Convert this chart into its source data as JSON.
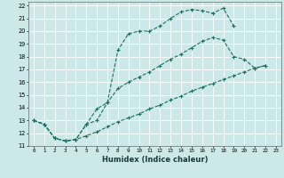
{
  "xlabel": "Humidex (Indice chaleur)",
  "background_color": "#cce8e8",
  "grid_color": "#b0d4d4",
  "line_color": "#1a7060",
  "xlim": [
    -0.5,
    23.5
  ],
  "ylim": [
    11,
    22.3
  ],
  "xticks": [
    0,
    1,
    2,
    3,
    4,
    5,
    6,
    7,
    8,
    9,
    10,
    11,
    12,
    13,
    14,
    15,
    16,
    17,
    18,
    19,
    20,
    21,
    22,
    23
  ],
  "yticks": [
    11,
    12,
    13,
    14,
    15,
    16,
    17,
    18,
    19,
    20,
    21,
    22
  ],
  "series": [
    {
      "x": [
        0,
        1,
        2,
        3,
        4,
        5,
        6,
        7,
        8,
        9,
        10,
        11,
        12,
        13,
        14,
        15,
        16,
        17,
        18,
        19
      ],
      "y": [
        13,
        12.7,
        11.6,
        11.4,
        11.5,
        12.7,
        13.9,
        14.4,
        18.5,
        19.8,
        20.0,
        20.0,
        20.4,
        21.0,
        21.5,
        21.7,
        21.6,
        21.4,
        21.8,
        20.4
      ]
    },
    {
      "x": [
        0,
        1,
        2,
        3,
        4,
        5,
        6,
        7,
        8,
        9,
        10,
        11,
        12,
        13,
        14,
        15,
        16,
        17,
        18,
        19,
        20,
        21,
        22
      ],
      "y": [
        13,
        12.7,
        11.6,
        11.4,
        11.5,
        12.7,
        13.0,
        14.4,
        15.5,
        16.0,
        16.4,
        16.8,
        17.3,
        17.8,
        18.2,
        18.7,
        19.2,
        19.5,
        19.3,
        18.0,
        17.8,
        17.1,
        17.3
      ]
    },
    {
      "x": [
        0,
        1,
        2,
        3,
        4,
        5,
        6,
        7,
        8,
        9,
        10,
        11,
        12,
        13,
        14,
        15,
        16,
        17,
        18,
        19,
        20,
        21,
        22
      ],
      "y": [
        13,
        12.7,
        11.6,
        11.4,
        11.5,
        11.8,
        12.1,
        12.5,
        12.9,
        13.2,
        13.5,
        13.9,
        14.2,
        14.6,
        14.9,
        15.3,
        15.6,
        15.9,
        16.2,
        16.5,
        16.8,
        17.1,
        17.3
      ]
    }
  ]
}
